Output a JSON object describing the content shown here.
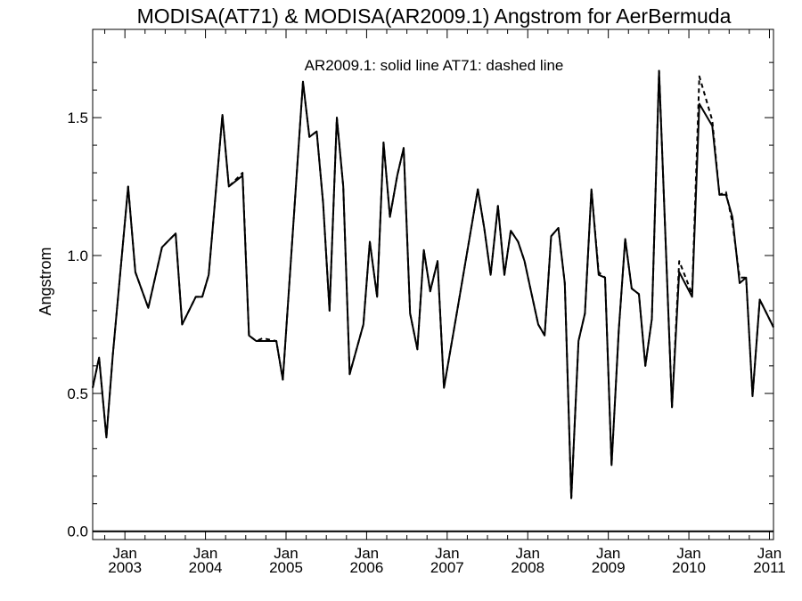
{
  "chart_data": {
    "type": "line",
    "title": "MODISA(AT71) & MODISA(AR2009.1)  Angstrom for AerBermuda",
    "annotation": "AR2009.1: solid line   AT71: dashed line",
    "ylabel": "Angstrom",
    "xlabel": "",
    "xlim": [
      2002.6,
      2011.05
    ],
    "ylim": [
      -0.03,
      1.82
    ],
    "grid": false,
    "yticks": [
      {
        "value": 0.0,
        "label": "0.0"
      },
      {
        "value": 0.5,
        "label": "0.5"
      },
      {
        "value": 1.0,
        "label": "1.0"
      },
      {
        "value": 1.5,
        "label": "1.5"
      }
    ],
    "xticks": [
      {
        "value": 2003.0,
        "label_top": "Jan",
        "label_bottom": "2003"
      },
      {
        "value": 2004.0,
        "label_top": "Jan",
        "label_bottom": "2004"
      },
      {
        "value": 2005.0,
        "label_top": "Jan",
        "label_bottom": "2005"
      },
      {
        "value": 2006.0,
        "label_top": "Jan",
        "label_bottom": "2006"
      },
      {
        "value": 2007.0,
        "label_top": "Jan",
        "label_bottom": "2007"
      },
      {
        "value": 2008.0,
        "label_top": "Jan",
        "label_bottom": "2008"
      },
      {
        "value": 2009.0,
        "label_top": "Jan",
        "label_bottom": "2009"
      },
      {
        "value": 2010.0,
        "label_top": "Jan",
        "label_bottom": "2010"
      },
      {
        "value": 2011.0,
        "label_top": "Jan",
        "label_bottom": "2011"
      }
    ],
    "series": [
      {
        "name": "AR2009.1",
        "style": "solid",
        "color": "#000000",
        "points": [
          [
            2002.6,
            0.52
          ],
          [
            2002.68,
            0.63
          ],
          [
            2002.77,
            0.34
          ],
          [
            2002.85,
            0.64
          ],
          [
            2003.04,
            1.25
          ],
          [
            2003.13,
            0.94
          ],
          [
            2003.29,
            0.81
          ],
          [
            2003.46,
            1.03
          ],
          [
            2003.63,
            1.08
          ],
          [
            2003.71,
            0.75
          ],
          [
            2003.88,
            0.85
          ],
          [
            2003.96,
            0.85
          ],
          [
            2004.04,
            0.93
          ],
          [
            2004.21,
            1.51
          ],
          [
            2004.29,
            1.25
          ],
          [
            2004.46,
            1.29
          ],
          [
            2004.54,
            0.71
          ],
          [
            2004.63,
            0.69
          ],
          [
            2004.71,
            0.69
          ],
          [
            2004.88,
            0.69
          ],
          [
            2004.96,
            0.55
          ],
          [
            2005.21,
            1.63
          ],
          [
            2005.29,
            1.43
          ],
          [
            2005.38,
            1.45
          ],
          [
            2005.46,
            1.19
          ],
          [
            2005.54,
            0.8
          ],
          [
            2005.63,
            1.5
          ],
          [
            2005.71,
            1.25
          ],
          [
            2005.79,
            0.57
          ],
          [
            2005.96,
            0.75
          ],
          [
            2006.04,
            1.05
          ],
          [
            2006.13,
            0.85
          ],
          [
            2006.21,
            1.41
          ],
          [
            2006.29,
            1.14
          ],
          [
            2006.38,
            1.29
          ],
          [
            2006.46,
            1.39
          ],
          [
            2006.54,
            0.79
          ],
          [
            2006.63,
            0.66
          ],
          [
            2006.71,
            1.02
          ],
          [
            2006.79,
            0.87
          ],
          [
            2006.88,
            0.98
          ],
          [
            2006.96,
            0.52
          ],
          [
            2007.13,
            0.81
          ],
          [
            2007.38,
            1.24
          ],
          [
            2007.46,
            1.1
          ],
          [
            2007.54,
            0.93
          ],
          [
            2007.63,
            1.18
          ],
          [
            2007.71,
            0.93
          ],
          [
            2007.79,
            1.09
          ],
          [
            2007.88,
            1.05
          ],
          [
            2007.96,
            0.98
          ],
          [
            2008.04,
            0.87
          ],
          [
            2008.13,
            0.75
          ],
          [
            2008.21,
            0.71
          ],
          [
            2008.29,
            1.07
          ],
          [
            2008.38,
            1.1
          ],
          [
            2008.46,
            0.9
          ],
          [
            2008.54,
            0.12
          ],
          [
            2008.63,
            0.69
          ],
          [
            2008.71,
            0.79
          ],
          [
            2008.79,
            1.24
          ],
          [
            2008.88,
            0.93
          ],
          [
            2008.96,
            0.92
          ],
          [
            2009.04,
            0.24
          ],
          [
            2009.13,
            0.73
          ],
          [
            2009.21,
            1.06
          ],
          [
            2009.29,
            0.88
          ],
          [
            2009.38,
            0.86
          ],
          [
            2009.46,
            0.6
          ],
          [
            2009.54,
            0.77
          ],
          [
            2009.63,
            1.67
          ],
          [
            2009.79,
            0.45
          ],
          [
            2009.88,
            0.94
          ],
          [
            2010.04,
            0.85
          ],
          [
            2010.13,
            1.55
          ],
          [
            2010.29,
            1.47
          ],
          [
            2010.38,
            1.22
          ],
          [
            2010.46,
            1.22
          ],
          [
            2010.54,
            1.14
          ],
          [
            2010.63,
            0.9
          ],
          [
            2010.71,
            0.92
          ],
          [
            2010.79,
            0.49
          ],
          [
            2010.88,
            0.84
          ],
          [
            2011.05,
            0.74
          ]
        ]
      },
      {
        "name": "AT71",
        "style": "dashed",
        "color": "#000000",
        "points": [
          [
            2002.6,
            0.52
          ],
          [
            2002.68,
            0.63
          ],
          [
            2002.77,
            0.34
          ],
          [
            2002.85,
            0.64
          ],
          [
            2003.04,
            1.25
          ],
          [
            2003.13,
            0.94
          ],
          [
            2003.29,
            0.81
          ],
          [
            2003.46,
            1.03
          ],
          [
            2003.63,
            1.08
          ],
          [
            2003.71,
            0.75
          ],
          [
            2003.88,
            0.85
          ],
          [
            2003.96,
            0.85
          ],
          [
            2004.04,
            0.93
          ],
          [
            2004.21,
            1.51
          ],
          [
            2004.29,
            1.25
          ],
          [
            2004.46,
            1.3
          ],
          [
            2004.54,
            0.71
          ],
          [
            2004.63,
            0.69
          ],
          [
            2004.71,
            0.7
          ],
          [
            2004.88,
            0.69
          ],
          [
            2004.96,
            0.55
          ],
          [
            2005.21,
            1.63
          ],
          [
            2005.29,
            1.43
          ],
          [
            2005.38,
            1.45
          ],
          [
            2005.46,
            1.19
          ],
          [
            2005.54,
            0.8
          ],
          [
            2005.63,
            1.5
          ],
          [
            2005.71,
            1.25
          ],
          [
            2005.79,
            0.57
          ],
          [
            2005.96,
            0.75
          ],
          [
            2006.04,
            1.05
          ],
          [
            2006.13,
            0.85
          ],
          [
            2006.21,
            1.41
          ],
          [
            2006.29,
            1.14
          ],
          [
            2006.38,
            1.29
          ],
          [
            2006.46,
            1.39
          ],
          [
            2006.54,
            0.79
          ],
          [
            2006.63,
            0.66
          ],
          [
            2006.71,
            1.02
          ],
          [
            2006.79,
            0.87
          ],
          [
            2006.88,
            0.98
          ],
          [
            2006.96,
            0.52
          ],
          [
            2007.13,
            0.81
          ],
          [
            2007.38,
            1.24
          ],
          [
            2007.46,
            1.1
          ],
          [
            2007.54,
            0.93
          ],
          [
            2007.63,
            1.18
          ],
          [
            2007.71,
            0.93
          ],
          [
            2007.79,
            1.09
          ],
          [
            2007.88,
            1.05
          ],
          [
            2007.96,
            0.98
          ],
          [
            2008.04,
            0.87
          ],
          [
            2008.13,
            0.75
          ],
          [
            2008.21,
            0.71
          ],
          [
            2008.29,
            1.07
          ],
          [
            2008.38,
            1.1
          ],
          [
            2008.46,
            0.9
          ],
          [
            2008.54,
            0.12
          ],
          [
            2008.63,
            0.69
          ],
          [
            2008.71,
            0.79
          ],
          [
            2008.79,
            1.24
          ],
          [
            2008.88,
            0.94
          ],
          [
            2008.96,
            0.92
          ],
          [
            2009.04,
            0.24
          ],
          [
            2009.13,
            0.73
          ],
          [
            2009.21,
            1.06
          ],
          [
            2009.29,
            0.88
          ],
          [
            2009.38,
            0.86
          ],
          [
            2009.46,
            0.6
          ],
          [
            2009.54,
            0.77
          ],
          [
            2009.63,
            1.67
          ],
          [
            2009.79,
            0.45
          ],
          [
            2009.88,
            0.98
          ],
          [
            2010.04,
            0.86
          ],
          [
            2010.13,
            1.65
          ],
          [
            2010.29,
            1.49
          ],
          [
            2010.38,
            1.22
          ],
          [
            2010.46,
            1.23
          ],
          [
            2010.54,
            1.12
          ],
          [
            2010.63,
            0.92
          ],
          [
            2010.71,
            0.92
          ],
          [
            2010.79,
            0.49
          ],
          [
            2010.88,
            0.84
          ],
          [
            2011.05,
            0.74
          ]
        ]
      }
    ]
  }
}
